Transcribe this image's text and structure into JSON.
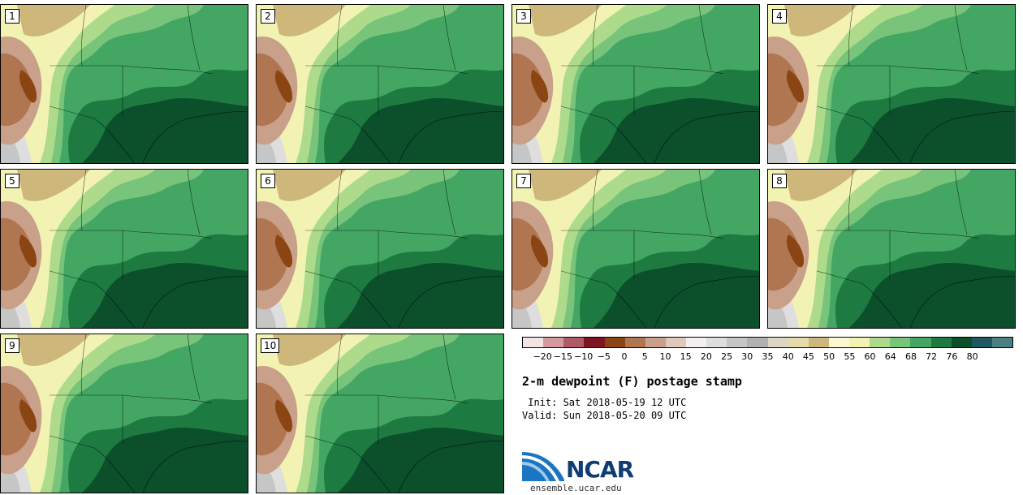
{
  "panels": [
    {
      "label": "1"
    },
    {
      "label": "2"
    },
    {
      "label": "3"
    },
    {
      "label": "4"
    },
    {
      "label": "5"
    },
    {
      "label": "6"
    },
    {
      "label": "7"
    },
    {
      "label": "8"
    },
    {
      "label": "9"
    },
    {
      "label": "10"
    }
  ],
  "legend": {
    "colors": [
      "#f4e3e3",
      "#d29aa0",
      "#b05a66",
      "#7d1621",
      "#8b4513",
      "#b07652",
      "#c9a08a",
      "#e0c8bb",
      "#f4f0ef",
      "#dedede",
      "#c6c6c6",
      "#b0b0b0",
      "#dcd6c4",
      "#e6d9aa",
      "#cdb77b",
      "#fbf8d4",
      "#f2f3b2",
      "#addb8b",
      "#78c47a",
      "#43a663",
      "#1d7a40",
      "#0b4f2b",
      "#1f5860",
      "#4c7f82"
    ],
    "tick_labels": [
      "−20",
      "−15",
      "−10",
      "−5",
      "0",
      "5",
      "10",
      "15",
      "20",
      "25",
      "30",
      "35",
      "40",
      "45",
      "50",
      "55",
      "60",
      "64",
      "68",
      "72",
      "76",
      "80"
    ]
  },
  "title": "2-m dewpoint (F) postage stamp",
  "init_line": " Init: Sat 2018-05-19 12 UTC",
  "valid_line": "Valid: Sun 2018-05-20 09 UTC",
  "logo": {
    "text": "NCAR",
    "url": "ensemble.ucar.edu"
  }
}
